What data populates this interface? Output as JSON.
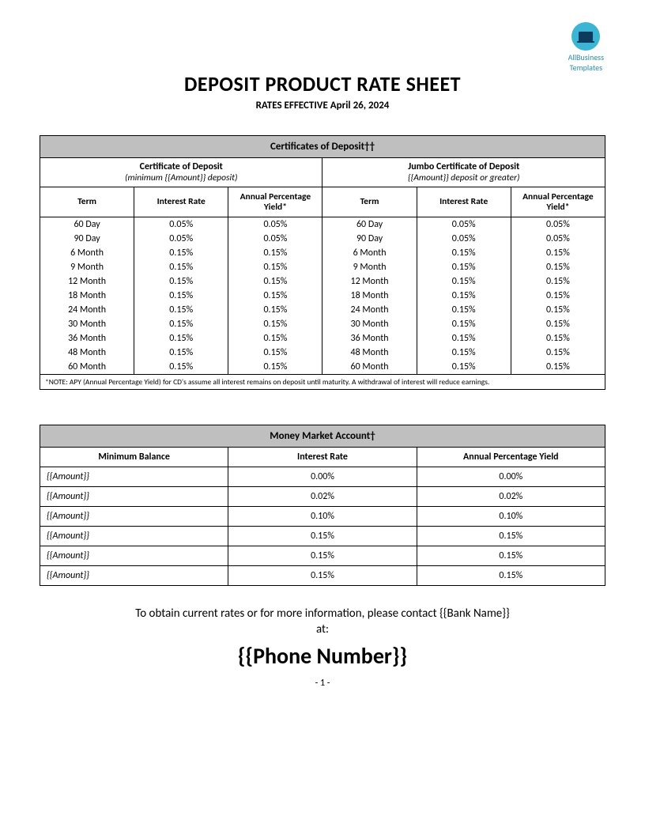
{
  "logo": {
    "line1": "AllBusiness",
    "line2": "Templates"
  },
  "title": "DEPOSIT PRODUCT RATE SHEET",
  "subtitle": "RATES EFFECTIVE April 26, 2024",
  "cd": {
    "header": "Certificates of Deposit††",
    "left": {
      "title": "Certificate of Deposit",
      "sub": "(minimum {{Amount}} deposit)"
    },
    "right": {
      "title": "Jumbo Certificate of Deposit",
      "sub": "{{Amount}} deposit or greater)"
    },
    "cols": {
      "term": "Term",
      "rate": "Interest Rate",
      "apy": "Annual Percentage Yield*"
    },
    "rows": [
      {
        "term": "60 Day",
        "rate": "0.05%",
        "apy": "0.05%",
        "jterm": "60 Day",
        "jrate": "0.05%",
        "japy": "0.05%"
      },
      {
        "term": "90 Day",
        "rate": "0.05%",
        "apy": "0.05%",
        "jterm": "90 Day",
        "jrate": "0.05%",
        "japy": "0.05%"
      },
      {
        "term": "6 Month",
        "rate": "0.15%",
        "apy": "0.15%",
        "jterm": "6 Month",
        "jrate": "0.15%",
        "japy": "0.15%"
      },
      {
        "term": "9 Month",
        "rate": "0.15%",
        "apy": "0.15%",
        "jterm": "9 Month",
        "jrate": "0.15%",
        "japy": "0.15%"
      },
      {
        "term": "12 Month",
        "rate": "0.15%",
        "apy": "0.15%",
        "jterm": "12 Month",
        "jrate": "0.15%",
        "japy": "0.15%"
      },
      {
        "term": "18 Month",
        "rate": "0.15%",
        "apy": "0.15%",
        "jterm": "18 Month",
        "jrate": "0.15%",
        "japy": "0.15%"
      },
      {
        "term": "24 Month",
        "rate": "0.15%",
        "apy": "0.15%",
        "jterm": "24 Month",
        "jrate": "0.15%",
        "japy": "0.15%"
      },
      {
        "term": "30 Month",
        "rate": "0.15%",
        "apy": "0.15%",
        "jterm": "30 Month",
        "jrate": "0.15%",
        "japy": "0.15%"
      },
      {
        "term": "36 Month",
        "rate": "0.15%",
        "apy": "0.15%",
        "jterm": "36 Month",
        "jrate": "0.15%",
        "japy": "0.15%"
      },
      {
        "term": "48 Month",
        "rate": "0.15%",
        "apy": "0.15%",
        "jterm": "48 Month",
        "jrate": "0.15%",
        "japy": "0.15%"
      },
      {
        "term": "60 Month",
        "rate": "0.15%",
        "apy": "0.15%",
        "jterm": "60 Month",
        "jrate": "0.15%",
        "japy": "0.15%"
      }
    ],
    "note": "*NOTE: APY (Annual Percentage Yield) for CD's assume all interest remains on deposit until maturity.   A withdrawal of interest will reduce earnings."
  },
  "mm": {
    "header": "Money Market Account†",
    "cols": {
      "min": "Minimum Balance",
      "rate": "Interest Rate",
      "apy": "Annual Percentage Yield"
    },
    "rows": [
      {
        "min": "{{Amount}}",
        "rate": "0.00%",
        "apy": "0.00%"
      },
      {
        "min": "{{Amount}}",
        "rate": "0.02%",
        "apy": "0.02%"
      },
      {
        "min": "{{Amount}}",
        "rate": "0.10%",
        "apy": "0.10%"
      },
      {
        "min": "{{Amount}}",
        "rate": "0.15%",
        "apy": "0.15%"
      },
      {
        "min": "{{Amount}}",
        "rate": "0.15%",
        "apy": "0.15%"
      },
      {
        "min": "{{Amount}}",
        "rate": "0.15%",
        "apy": "0.15%"
      }
    ]
  },
  "contact": {
    "line1": "To obtain current rates or for more information, please contact {{Bank Name}}",
    "line2": "at:",
    "phone": "{{Phone Number}}"
  },
  "pagenum": "- 1 -"
}
